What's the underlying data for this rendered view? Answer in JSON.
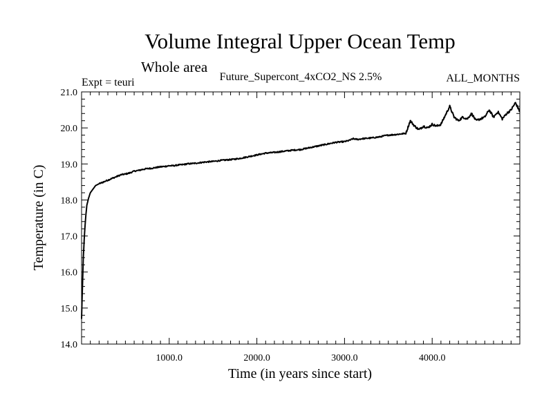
{
  "chart_data": {
    "type": "line",
    "title": "Volume Integral Upper Ocean Temp",
    "subtitle": "Whole area",
    "expt_label": "Expt = teuri",
    "run_label": "Future_Supercont_4xCO2_NS 2.5%",
    "months_label": "ALL_MONTHS",
    "xlabel": "Time (in years since start)",
    "ylabel": "Temperature (in C)",
    "xlim": [
      0,
      5000
    ],
    "ylim": [
      14.0,
      21.0
    ],
    "xticks": [
      1000,
      2000,
      3000,
      4000
    ],
    "xtick_labels": [
      "1000.0",
      "2000.0",
      "3000.0",
      "4000.0"
    ],
    "yticks": [
      14,
      15,
      16,
      17,
      18,
      19,
      20,
      21
    ],
    "ytick_labels": [
      "14.0",
      "15.0",
      "16.0",
      "17.0",
      "18.0",
      "19.0",
      "20.0",
      "21.0"
    ],
    "grid": false,
    "line_color": "#000000",
    "series": [
      {
        "x": [
          0,
          10,
          20,
          30,
          40,
          50,
          60,
          80,
          100,
          130,
          160,
          200,
          250,
          300,
          350,
          400,
          450,
          500,
          550,
          600,
          650,
          700,
          750,
          800,
          850,
          900,
          950,
          1000,
          1050,
          1100,
          1150,
          1200,
          1300,
          1400,
          1500,
          1600,
          1700,
          1800,
          1900,
          2000,
          2100,
          2200,
          2300,
          2400,
          2500,
          2600,
          2700,
          2800,
          2900,
          3000,
          3050,
          3100,
          3150,
          3200,
          3300,
          3400,
          3450,
          3500,
          3600,
          3700,
          3750,
          3800,
          3850,
          3900,
          3950,
          4000,
          4050,
          4100,
          4150,
          4200,
          4250,
          4300,
          4350,
          4400,
          4450,
          4500,
          4550,
          4600,
          4650,
          4700,
          4750,
          4800,
          4850,
          4900,
          4950,
          5000
        ],
        "values": [
          14.7,
          15.6,
          16.4,
          16.9,
          17.3,
          17.6,
          17.85,
          18.05,
          18.2,
          18.3,
          18.4,
          18.45,
          18.5,
          18.55,
          18.6,
          18.65,
          18.7,
          18.72,
          18.75,
          18.8,
          18.82,
          18.85,
          18.87,
          18.88,
          18.9,
          18.92,
          18.93,
          18.95,
          18.95,
          18.97,
          18.98,
          19.0,
          19.02,
          19.05,
          19.07,
          19.1,
          19.12,
          19.15,
          19.2,
          19.25,
          19.3,
          19.32,
          19.35,
          19.38,
          19.4,
          19.45,
          19.5,
          19.55,
          19.6,
          19.62,
          19.65,
          19.7,
          19.68,
          19.7,
          19.72,
          19.75,
          19.78,
          19.8,
          19.82,
          19.85,
          20.2,
          20.05,
          19.95,
          20.05,
          20.0,
          20.1,
          20.05,
          20.1,
          20.35,
          20.6,
          20.3,
          20.2,
          20.3,
          20.25,
          20.4,
          20.2,
          20.25,
          20.3,
          20.5,
          20.3,
          20.45,
          20.25,
          20.4,
          20.5,
          20.7,
          20.45
        ]
      }
    ]
  }
}
